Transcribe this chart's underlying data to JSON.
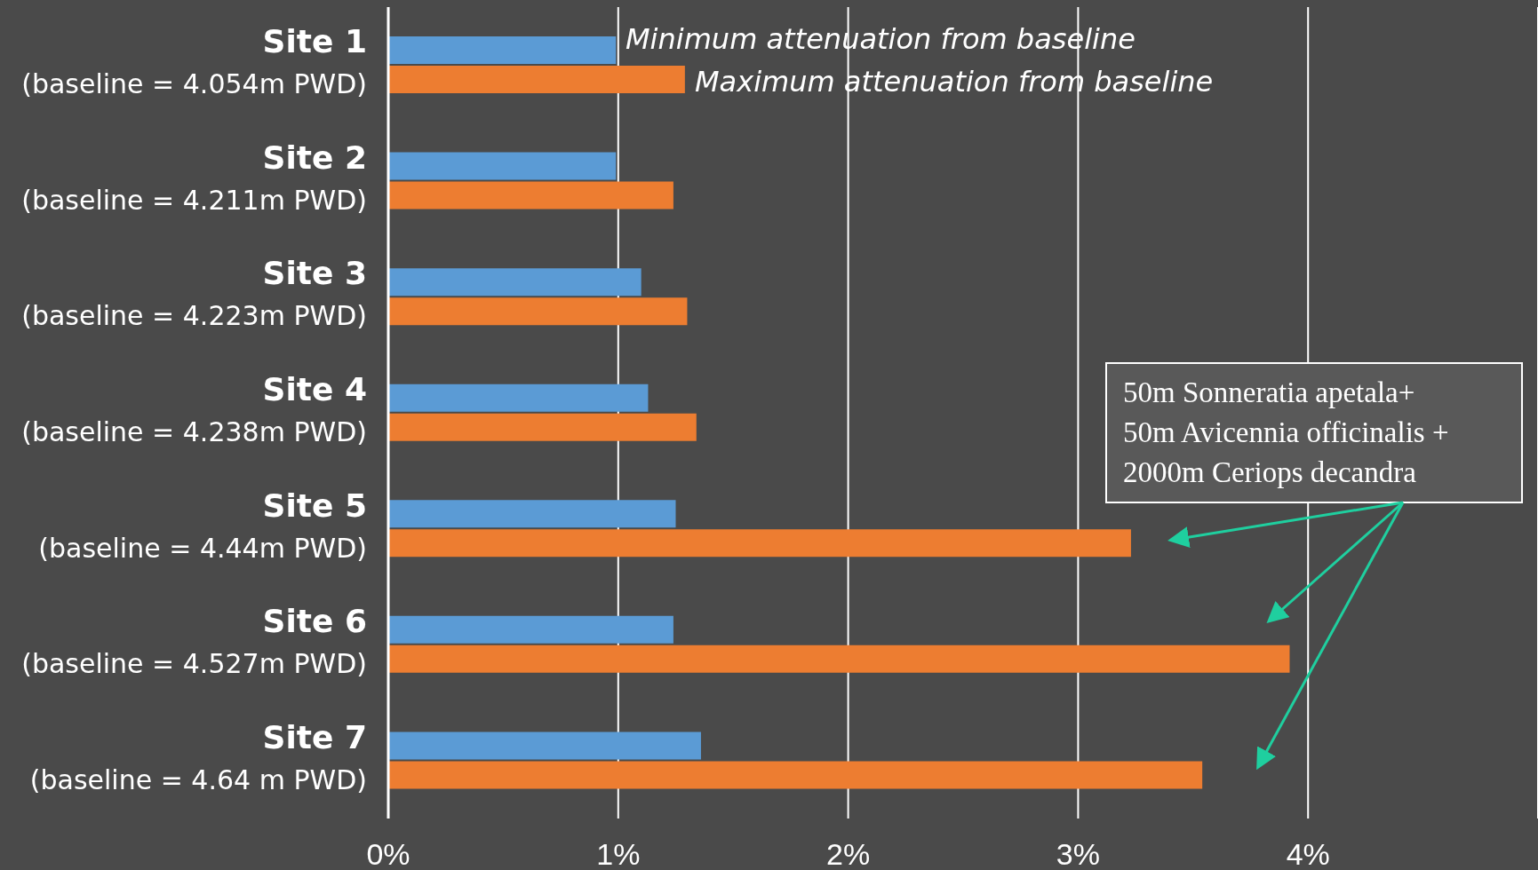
{
  "chart_data": {
    "type": "bar",
    "orientation": "horizontal",
    "categories": [
      "Site 1\n(baseline = 4.054m PWD)",
      "Site 2\n(baseline = 4.211m PWD)",
      "Site 3\n(baseline = 4.223m PWD)",
      "Site 4\n(baseline = 4.238m PWD)",
      "Site 5\n(baseline = 4.44m PWD)",
      "Site 6\n(baseline = 4.527m PWD)",
      "Site 7\n(baseline = 4.64 m PWD)"
    ],
    "series": [
      {
        "name": "Minimum attenuation from baseline",
        "color": "#5b9bd5",
        "values": [
          0.99,
          0.99,
          1.1,
          1.13,
          1.25,
          1.24,
          1.36
        ]
      },
      {
        "name": "Maximum attenuation from baseline",
        "color": "#ed7d31",
        "values": [
          1.29,
          1.24,
          1.3,
          1.34,
          3.23,
          3.92,
          3.54
        ]
      }
    ],
    "xlim": [
      0,
      5
    ],
    "xticks": [
      {
        "value": 0,
        "label": "0%"
      },
      {
        "value": 1,
        "label": "1%"
      },
      {
        "value": 2,
        "label": "2%"
      },
      {
        "value": 3,
        "label": "3%"
      },
      {
        "value": 4,
        "label": "4%"
      }
    ],
    "grid": "x",
    "legend": "top",
    "annotations": [
      "50m Sonneratia apetala+\n50m Avicennia officinalis +\n2000m Ceriops decandra"
    ]
  }
}
